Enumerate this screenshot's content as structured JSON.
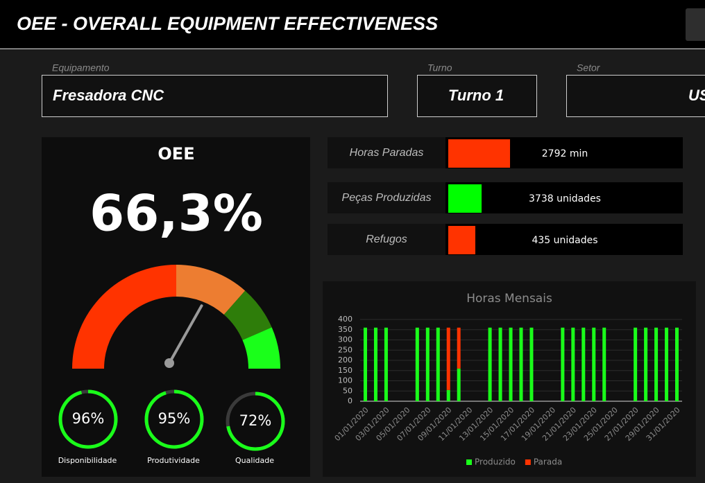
{
  "header": {
    "title": "OEE - OVERALL EQUIPMENT EFFECTIVENESS"
  },
  "filters": [
    {
      "label": "Equipamento",
      "value": "Fresadora CNC"
    },
    {
      "label": "Turno",
      "value": "Turno 1"
    },
    {
      "label": "Setor",
      "value": "US"
    }
  ],
  "oee": {
    "title": "OEE",
    "value": 66.3,
    "value_label": "66,3%",
    "zones": [
      {
        "to": 50,
        "color": "#ff3300"
      },
      {
        "to": 73,
        "color": "#ed7d31"
      },
      {
        "to": 87,
        "color": "#2e7d0a"
      },
      {
        "to": 100,
        "color": "#1aff1a"
      }
    ],
    "indicators": [
      {
        "name": "Disponibilidade",
        "value": 96,
        "value_label": "96%"
      },
      {
        "name": "Produtividade",
        "value": 95,
        "value_label": "95%"
      },
      {
        "name": "Qualidade",
        "value": 72,
        "value_label": "72%"
      }
    ]
  },
  "kpis": [
    {
      "name": "Horas Paradas",
      "value": 2792,
      "value_label": "2792 min",
      "max": 10600,
      "color": "#ff3300"
    },
    {
      "name": "Peças Produzidas",
      "value": 3738,
      "value_label": "3738 unidades",
      "max": 26300,
      "color": "#00ff00"
    },
    {
      "name": "Refugos",
      "value": 435,
      "value_label": "435 unidades",
      "max": 3770,
      "color": "#ff3300"
    }
  ],
  "chart_data": {
    "type": "stacked_bar",
    "title": "Horas Mensais",
    "categories": [
      "01/01/2020",
      null,
      "03/01/2020",
      null,
      "05/01/2020",
      null,
      "07/01/2020",
      null,
      "09/01/2020",
      null,
      "11/01/2020",
      null,
      "13/01/2020",
      null,
      "15/01/2020",
      null,
      "17/01/2020",
      null,
      "19/01/2020",
      null,
      "21/01/2020",
      null,
      "23/01/2020",
      null,
      "25/01/2020",
      null,
      "27/01/2020",
      null,
      "29/01/2020",
      null,
      "31/01/2020"
    ],
    "series": [
      {
        "name": "Produzido",
        "color": "#1aff1a",
        "values": [
          360,
          360,
          360,
          0,
          0,
          360,
          360,
          360,
          55,
          160,
          0,
          0,
          360,
          360,
          360,
          360,
          360,
          0,
          0,
          360,
          360,
          360,
          360,
          360,
          0,
          0,
          360,
          360,
          360,
          360,
          360
        ]
      },
      {
        "name": "Parada",
        "color": "#ff3300",
        "values": [
          0,
          0,
          0,
          0,
          0,
          0,
          0,
          0,
          305,
          200,
          0,
          0,
          0,
          0,
          0,
          0,
          0,
          0,
          0,
          0,
          0,
          0,
          0,
          0,
          0,
          0,
          0,
          0,
          0,
          0,
          0
        ]
      }
    ],
    "ylim": [
      0,
      400
    ],
    "yticks": [
      0,
      50,
      100,
      150,
      200,
      250,
      300,
      350,
      400
    ],
    "grid": true,
    "legend": "bottom"
  }
}
